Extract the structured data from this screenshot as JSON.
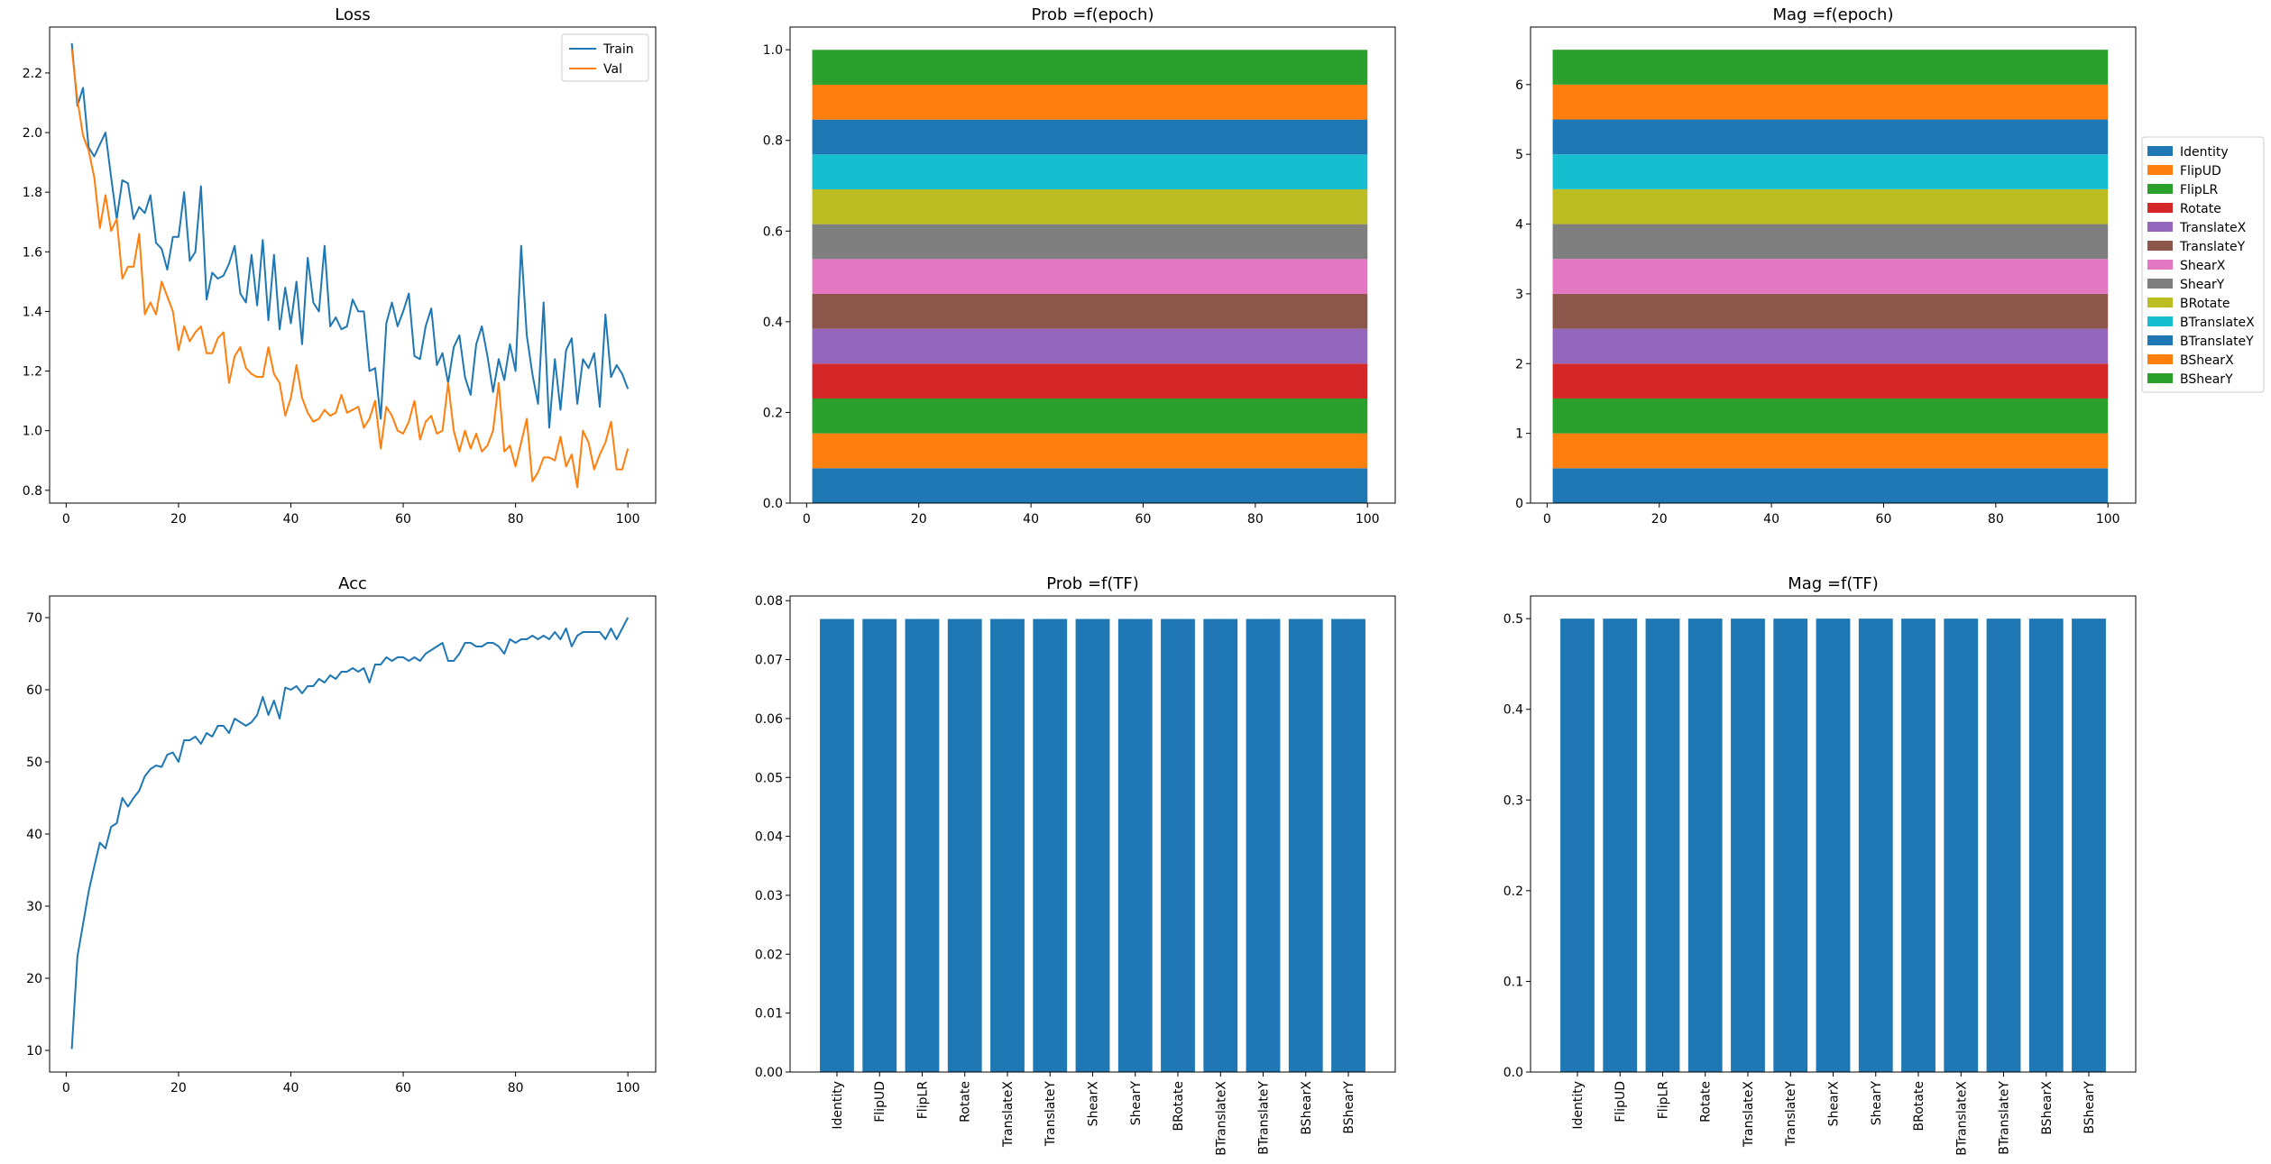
{
  "chart_data": [
    {
      "id": "loss",
      "type": "line",
      "title": "Loss",
      "xlim": [
        -2.95,
        104.95
      ],
      "ylim": [
        0.757,
        2.354
      ],
      "xticks": [
        0,
        20,
        40,
        60,
        80,
        100
      ],
      "yticks": [
        0.8,
        1.0,
        1.2,
        1.4,
        1.6,
        1.8,
        2.0,
        2.2
      ],
      "ytick_decimals": 1,
      "legend_position": "top-right",
      "series": [
        {
          "name": "Train",
          "color": "#1f77b4",
          "x_start": 1,
          "values": [
            2.3,
            2.09,
            2.15,
            1.95,
            1.92,
            1.96,
            2.0,
            1.85,
            1.71,
            1.84,
            1.83,
            1.71,
            1.75,
            1.73,
            1.79,
            1.63,
            1.61,
            1.54,
            1.65,
            1.65,
            1.8,
            1.57,
            1.6,
            1.82,
            1.44,
            1.53,
            1.51,
            1.52,
            1.56,
            1.62,
            1.46,
            1.43,
            1.59,
            1.42,
            1.64,
            1.37,
            1.59,
            1.34,
            1.48,
            1.36,
            1.5,
            1.29,
            1.58,
            1.43,
            1.4,
            1.62,
            1.35,
            1.38,
            1.34,
            1.35,
            1.44,
            1.4,
            1.4,
            1.2,
            1.21,
            1.04,
            1.36,
            1.43,
            1.35,
            1.4,
            1.46,
            1.25,
            1.24,
            1.35,
            1.41,
            1.22,
            1.26,
            1.16,
            1.28,
            1.32,
            1.18,
            1.12,
            1.29,
            1.35,
            1.25,
            1.13,
            1.24,
            1.17,
            1.29,
            1.2,
            1.62,
            1.32,
            1.19,
            1.09,
            1.43,
            1.01,
            1.24,
            1.07,
            1.27,
            1.31,
            1.09,
            1.24,
            1.21,
            1.26,
            1.08,
            1.39,
            1.18,
            1.22,
            1.19,
            1.14
          ]
        },
        {
          "name": "Val",
          "color": "#ff7f0e",
          "x_start": 1,
          "values": [
            2.28,
            2.11,
            1.99,
            1.94,
            1.85,
            1.68,
            1.79,
            1.67,
            1.71,
            1.51,
            1.55,
            1.55,
            1.66,
            1.39,
            1.43,
            1.39,
            1.5,
            1.45,
            1.4,
            1.27,
            1.35,
            1.3,
            1.33,
            1.35,
            1.26,
            1.26,
            1.31,
            1.33,
            1.16,
            1.25,
            1.28,
            1.21,
            1.19,
            1.18,
            1.18,
            1.28,
            1.19,
            1.16,
            1.05,
            1.11,
            1.22,
            1.11,
            1.06,
            1.03,
            1.04,
            1.07,
            1.05,
            1.06,
            1.12,
            1.06,
            1.07,
            1.08,
            1.01,
            1.04,
            1.1,
            0.94,
            1.08,
            1.05,
            1.0,
            0.99,
            1.03,
            1.1,
            0.97,
            1.03,
            1.05,
            0.99,
            1.0,
            1.16,
            1.0,
            0.93,
            1.0,
            0.94,
            0.99,
            0.93,
            0.95,
            1.0,
            1.16,
            0.93,
            0.95,
            0.88,
            0.96,
            1.04,
            0.83,
            0.86,
            0.91,
            0.91,
            0.9,
            0.98,
            0.88,
            0.92,
            0.81,
            1.0,
            0.96,
            0.87,
            0.92,
            0.96,
            1.03,
            0.87,
            0.87,
            0.94
          ]
        }
      ]
    },
    {
      "id": "prob_epoch",
      "type": "area",
      "title": "Prob =f(epoch)",
      "xlim": [
        -2.95,
        104.95
      ],
      "ylim": [
        0,
        1.05
      ],
      "xticks": [
        0,
        20,
        40,
        60,
        80,
        100
      ],
      "yticks": [
        0.0,
        0.2,
        0.4,
        0.6,
        0.8,
        1.0
      ],
      "ytick_decimals": 1,
      "x_range": [
        1,
        100
      ],
      "layer_value": 0.0769,
      "layer_count": 13
    },
    {
      "id": "mag_epoch",
      "type": "area",
      "title": "Mag =f(epoch)",
      "xlim": [
        -2.95,
        104.95
      ],
      "ylim": [
        0,
        6.825
      ],
      "xticks": [
        0,
        20,
        40,
        60,
        80,
        100
      ],
      "yticks": [
        0,
        1,
        2,
        3,
        4,
        5,
        6
      ],
      "ytick_decimals": 0,
      "x_range": [
        1,
        100
      ],
      "layer_value": 0.5,
      "layer_count": 13,
      "legend_position": "right, outside",
      "legend": [
        "Identity",
        "FlipUD",
        "FlipLR",
        "Rotate",
        "TranslateX",
        "TranslateY",
        "ShearX",
        "ShearY",
        "BRotate",
        "BTranslateX",
        "BTranslateY",
        "BShearX",
        "BShearY"
      ]
    },
    {
      "id": "acc",
      "type": "line",
      "title": "Acc",
      "xlim": [
        -2.95,
        104.95
      ],
      "ylim": [
        7.0,
        73.0
      ],
      "xticks": [
        0,
        20,
        40,
        60,
        80,
        100
      ],
      "yticks": [
        10,
        20,
        30,
        40,
        50,
        60,
        70
      ],
      "ytick_decimals": 0,
      "series": [
        {
          "name": "",
          "color": "#1f77b4",
          "x_start": 1,
          "values": [
            10.2,
            23.0,
            27.5,
            32.0,
            35.5,
            38.8,
            38.0,
            41.0,
            41.5,
            45.0,
            43.8,
            45.0,
            46.0,
            48.0,
            49.0,
            49.5,
            49.3,
            51.0,
            51.3,
            50.0,
            53.0,
            53.0,
            53.5,
            52.5,
            54.0,
            53.5,
            55.0,
            55.0,
            54.0,
            56.0,
            55.5,
            55.0,
            55.5,
            56.5,
            59.0,
            56.5,
            58.5,
            56.0,
            60.3,
            60.0,
            60.5,
            59.5,
            60.5,
            60.5,
            61.5,
            61.0,
            62.0,
            61.5,
            62.5,
            62.5,
            63.0,
            62.5,
            63.0,
            61.0,
            63.5,
            63.5,
            64.5,
            64.0,
            64.5,
            64.5,
            64.0,
            64.5,
            64.0,
            65.0,
            65.5,
            66.0,
            66.5,
            64.0,
            64.0,
            65.0,
            66.5,
            66.5,
            66.0,
            66.0,
            66.5,
            66.5,
            66.0,
            65.0,
            67.0,
            66.5,
            67.0,
            67.0,
            67.5,
            67.0,
            67.5,
            67.0,
            68.0,
            67.0,
            68.5,
            66.0,
            67.5,
            68.0,
            68.0,
            68.0,
            68.0,
            67.0,
            68.5,
            67.0,
            68.5,
            70.0
          ]
        }
      ]
    },
    {
      "id": "prob_tf",
      "type": "bar",
      "title": "Prob =f(TF)",
      "categories": [
        "Identity",
        "FlipUD",
        "FlipLR",
        "Rotate",
        "TranslateX",
        "TranslateY",
        "ShearX",
        "ShearY",
        "BRotate",
        "BTranslateX",
        "BTranslateY",
        "BShearX",
        "BShearY"
      ],
      "values": [
        0.0769,
        0.0769,
        0.0769,
        0.0769,
        0.0769,
        0.0769,
        0.0769,
        0.0769,
        0.0769,
        0.0769,
        0.0769,
        0.0769,
        0.0769
      ],
      "color": "#1f77b4",
      "ylim": [
        0,
        0.0808
      ],
      "yticks": [
        0.0,
        0.01,
        0.02,
        0.03,
        0.04,
        0.05,
        0.06,
        0.07,
        0.08
      ],
      "ytick_decimals": 2
    },
    {
      "id": "mag_tf",
      "type": "bar",
      "title": "Mag =f(TF)",
      "categories": [
        "Identity",
        "FlipUD",
        "FlipLR",
        "Rotate",
        "TranslateX",
        "TranslateY",
        "ShearX",
        "ShearY",
        "BRotate",
        "BTranslateX",
        "BTranslateY",
        "BShearX",
        "BShearY"
      ],
      "values": [
        0.5,
        0.5,
        0.5,
        0.5,
        0.5,
        0.5,
        0.5,
        0.5,
        0.5,
        0.5,
        0.5,
        0.5,
        0.5
      ],
      "color": "#1f77b4",
      "ylim": [
        0,
        0.525
      ],
      "yticks": [
        0.0,
        0.1,
        0.2,
        0.3,
        0.4,
        0.5
      ],
      "ytick_decimals": 1
    }
  ],
  "palette": [
    "#1f77b4",
    "#ff7f0e",
    "#2ca02c",
    "#d62728",
    "#9467bd",
    "#8c564b",
    "#e377c2",
    "#7f7f7f",
    "#bcbd22",
    "#17becf",
    "#1f77b4",
    "#ff7f0e",
    "#2ca02c"
  ]
}
